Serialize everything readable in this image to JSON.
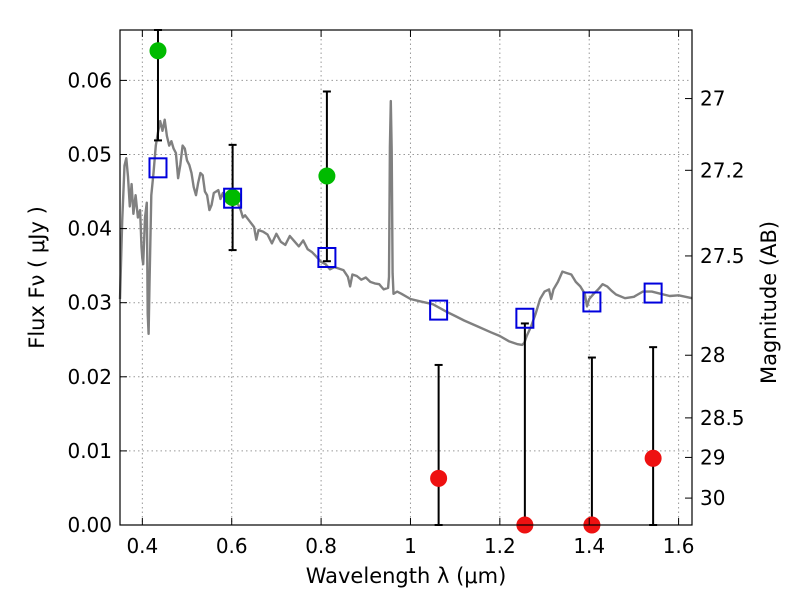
{
  "chart_data": {
    "type": "scatter",
    "xlabel": "Wavelength  λ (μm)",
    "ylabel": "Flux  Fν  ( μJy )",
    "ylabel_right": "Magnitude (AB)",
    "xlim": [
      0.35,
      1.63
    ],
    "ylim": [
      0.0,
      0.0668
    ],
    "grid": true,
    "x_ticks": [
      {
        "value": 0.4,
        "label": "0.4"
      },
      {
        "value": 0.6,
        "label": "0.6"
      },
      {
        "value": 0.8,
        "label": "0.8"
      },
      {
        "value": 1.0,
        "label": "1"
      },
      {
        "value": 1.2,
        "label": "1.2"
      },
      {
        "value": 1.4,
        "label": "1.4"
      },
      {
        "value": 1.6,
        "label": "1.6"
      }
    ],
    "y_ticks": [
      {
        "value": 0.0,
        "label": "0.00"
      },
      {
        "value": 0.01,
        "label": "0.01"
      },
      {
        "value": 0.02,
        "label": "0.02"
      },
      {
        "value": 0.03,
        "label": "0.03"
      },
      {
        "value": 0.04,
        "label": "0.04"
      },
      {
        "value": 0.05,
        "label": "0.05"
      },
      {
        "value": 0.06,
        "label": "0.06"
      }
    ],
    "right_ticks": [
      {
        "value": 27,
        "label": "27"
      },
      {
        "value": 27.2,
        "label": "27.2"
      },
      {
        "value": 27.5,
        "label": "27.5"
      },
      {
        "value": 28,
        "label": "28"
      },
      {
        "value": 28.5,
        "label": "28.5"
      },
      {
        "value": 29,
        "label": "29"
      },
      {
        "value": 30,
        "label": "30"
      }
    ],
    "colors": {
      "model": "#808080",
      "detection": "#00bb00",
      "upper_limit": "#ee1111",
      "model_photometry": "#0000dd",
      "errorbar": "#000000",
      "grid": "#999999"
    },
    "series": [
      {
        "kind": "line",
        "points": [
          [
            0.35,
            0.0305
          ],
          [
            0.355,
            0.041
          ],
          [
            0.36,
            0.0485
          ],
          [
            0.364,
            0.0495
          ],
          [
            0.368,
            0.047
          ],
          [
            0.372,
            0.043
          ],
          [
            0.376,
            0.046
          ],
          [
            0.38,
            0.042
          ],
          [
            0.385,
            0.0445
          ],
          [
            0.39,
            0.0415
          ],
          [
            0.395,
            0.0425
          ],
          [
            0.398,
            0.0375
          ],
          [
            0.4,
            0.036
          ],
          [
            0.402,
            0.0352
          ],
          [
            0.406,
            0.0415
          ],
          [
            0.41,
            0.0435
          ],
          [
            0.412,
            0.0285
          ],
          [
            0.414,
            0.0258
          ],
          [
            0.416,
            0.0325
          ],
          [
            0.42,
            0.0445
          ],
          [
            0.425,
            0.0475
          ],
          [
            0.43,
            0.0512
          ],
          [
            0.435,
            0.053
          ],
          [
            0.44,
            0.0545
          ],
          [
            0.445,
            0.0532
          ],
          [
            0.45,
            0.0547
          ],
          [
            0.455,
            0.0525
          ],
          [
            0.46,
            0.0512
          ],
          [
            0.465,
            0.0518
          ],
          [
            0.47,
            0.0508
          ],
          [
            0.475,
            0.0502
          ],
          [
            0.48,
            0.0468
          ],
          [
            0.485,
            0.0486
          ],
          [
            0.49,
            0.0512
          ],
          [
            0.495,
            0.0508
          ],
          [
            0.5,
            0.0492
          ],
          [
            0.505,
            0.0486
          ],
          [
            0.51,
            0.0475
          ],
          [
            0.515,
            0.0456
          ],
          [
            0.52,
            0.0445
          ],
          [
            0.525,
            0.0462
          ],
          [
            0.53,
            0.0475
          ],
          [
            0.535,
            0.0472
          ],
          [
            0.54,
            0.045
          ],
          [
            0.545,
            0.0445
          ],
          [
            0.55,
            0.0425
          ],
          [
            0.555,
            0.0432
          ],
          [
            0.56,
            0.0448
          ],
          [
            0.57,
            0.0452
          ],
          [
            0.575,
            0.044
          ],
          [
            0.58,
            0.0448
          ],
          [
            0.585,
            0.0438
          ],
          [
            0.59,
            0.0435
          ],
          [
            0.6,
            0.0442
          ],
          [
            0.605,
            0.0436
          ],
          [
            0.615,
            0.0432
          ],
          [
            0.62,
            0.0425
          ],
          [
            0.625,
            0.0415
          ],
          [
            0.63,
            0.0418
          ],
          [
            0.64,
            0.041
          ],
          [
            0.65,
            0.0402
          ],
          [
            0.655,
            0.0385
          ],
          [
            0.66,
            0.0398
          ],
          [
            0.67,
            0.0396
          ],
          [
            0.68,
            0.0392
          ],
          [
            0.69,
            0.038
          ],
          [
            0.7,
            0.0393
          ],
          [
            0.71,
            0.0382
          ],
          [
            0.72,
            0.0378
          ],
          [
            0.73,
            0.039
          ],
          [
            0.74,
            0.0383
          ],
          [
            0.75,
            0.0376
          ],
          [
            0.76,
            0.0384
          ],
          [
            0.77,
            0.0372
          ],
          [
            0.78,
            0.0368
          ],
          [
            0.79,
            0.0362
          ],
          [
            0.8,
            0.0355
          ],
          [
            0.81,
            0.0352
          ],
          [
            0.82,
            0.0345
          ],
          [
            0.83,
            0.0348
          ],
          [
            0.84,
            0.0346
          ],
          [
            0.85,
            0.0344
          ],
          [
            0.86,
            0.0335
          ],
          [
            0.865,
            0.0322
          ],
          [
            0.87,
            0.0338
          ],
          [
            0.88,
            0.0336
          ],
          [
            0.89,
            0.0331
          ],
          [
            0.9,
            0.0334
          ],
          [
            0.91,
            0.0328
          ],
          [
            0.92,
            0.0326
          ],
          [
            0.93,
            0.0325
          ],
          [
            0.94,
            0.0318
          ],
          [
            0.95,
            0.032
          ],
          [
            0.952,
            0.0335
          ],
          [
            0.954,
            0.051
          ],
          [
            0.956,
            0.0572
          ],
          [
            0.958,
            0.0505
          ],
          [
            0.96,
            0.034
          ],
          [
            0.962,
            0.0312
          ],
          [
            0.97,
            0.0315
          ],
          [
            0.98,
            0.0312
          ],
          [
            1.0,
            0.0305
          ],
          [
            1.02,
            0.0302
          ],
          [
            1.05,
            0.0298
          ],
          [
            1.08,
            0.0288
          ],
          [
            1.1,
            0.0282
          ],
          [
            1.12,
            0.0276
          ],
          [
            1.15,
            0.0268
          ],
          [
            1.18,
            0.026
          ],
          [
            1.2,
            0.0255
          ],
          [
            1.22,
            0.0248
          ],
          [
            1.24,
            0.0244
          ],
          [
            1.25,
            0.0243
          ],
          [
            1.255,
            0.0246
          ],
          [
            1.26,
            0.0255
          ],
          [
            1.27,
            0.0268
          ],
          [
            1.28,
            0.0285
          ],
          [
            1.29,
            0.0305
          ],
          [
            1.3,
            0.0315
          ],
          [
            1.31,
            0.0318
          ],
          [
            1.315,
            0.0305
          ],
          [
            1.32,
            0.0318
          ],
          [
            1.33,
            0.0328
          ],
          [
            1.34,
            0.0342
          ],
          [
            1.35,
            0.034
          ],
          [
            1.36,
            0.0338
          ],
          [
            1.37,
            0.0328
          ],
          [
            1.38,
            0.0322
          ],
          [
            1.39,
            0.0312
          ],
          [
            1.395,
            0.0295
          ],
          [
            1.4,
            0.0305
          ],
          [
            1.41,
            0.0312
          ],
          [
            1.42,
            0.0318
          ],
          [
            1.43,
            0.0325
          ],
          [
            1.44,
            0.0322
          ],
          [
            1.45,
            0.0316
          ],
          [
            1.46,
            0.0311
          ],
          [
            1.48,
            0.0306
          ],
          [
            1.5,
            0.0308
          ],
          [
            1.52,
            0.0315
          ],
          [
            1.54,
            0.0315
          ],
          [
            1.56,
            0.0312
          ],
          [
            1.58,
            0.0309
          ],
          [
            1.6,
            0.031
          ],
          [
            1.63,
            0.0306
          ]
        ]
      },
      {
        "kind": "detection",
        "points": [
          {
            "x": 0.435,
            "y": 0.064,
            "yerr_low": 0.0519,
            "yerr_high": 0.0668
          },
          {
            "x": 0.602,
            "y": 0.0442,
            "yerr_low": 0.0371,
            "yerr_high": 0.0513
          },
          {
            "x": 0.813,
            "y": 0.0471,
            "yerr_low": 0.0356,
            "yerr_high": 0.0585
          }
        ]
      },
      {
        "kind": "upper_limit",
        "points": [
          {
            "x": 1.063,
            "y": 0.0063,
            "yerr_low": 0.0,
            "yerr_high": 0.0216
          },
          {
            "x": 1.256,
            "y": 0.0,
            "yerr_low": 0.0,
            "yerr_high": 0.0272
          },
          {
            "x": 1.406,
            "y": 0.0,
            "yerr_low": 0.0,
            "yerr_high": 0.0226
          },
          {
            "x": 1.543,
            "y": 0.009,
            "yerr_low": 0.0,
            "yerr_high": 0.024
          }
        ]
      },
      {
        "kind": "model_photometry",
        "points": [
          {
            "x": 0.435,
            "y": 0.0482
          },
          {
            "x": 0.602,
            "y": 0.0441
          },
          {
            "x": 0.813,
            "y": 0.0361
          },
          {
            "x": 1.063,
            "y": 0.029
          },
          {
            "x": 1.256,
            "y": 0.0279
          },
          {
            "x": 1.406,
            "y": 0.0301
          },
          {
            "x": 1.543,
            "y": 0.0313
          }
        ]
      }
    ]
  }
}
